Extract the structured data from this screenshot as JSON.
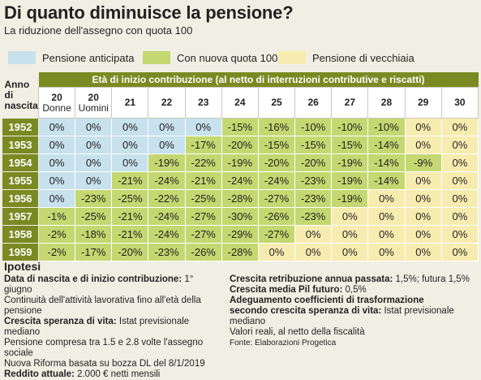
{
  "title": "Di quanto diminuisce la pensione?",
  "subtitle": "La riduzione dell'assegno con quota 100",
  "legend": [
    {
      "label": "Pensione anticipata",
      "color": "#c7e1ed"
    },
    {
      "label": "Con nuova quota 100",
      "color": "#c5d770"
    },
    {
      "label": "Pensione di vecchiaia",
      "color": "#f7ecb0"
    }
  ],
  "table": {
    "group_header": "Età di inizio contribuzione (al netto di interruzioni contributive e riscatti)",
    "row_header": "Anno di nascita",
    "columns": [
      {
        "label": "20",
        "sub": "Donne"
      },
      {
        "label": "20",
        "sub": "Uomini"
      },
      {
        "label": "21",
        "sub": ""
      },
      {
        "label": "22",
        "sub": ""
      },
      {
        "label": "23",
        "sub": ""
      },
      {
        "label": "24",
        "sub": ""
      },
      {
        "label": "25",
        "sub": ""
      },
      {
        "label": "26",
        "sub": ""
      },
      {
        "label": "27",
        "sub": ""
      },
      {
        "label": "28",
        "sub": ""
      },
      {
        "label": "29",
        "sub": ""
      },
      {
        "label": "30",
        "sub": ""
      }
    ],
    "rows": [
      {
        "year": "1952",
        "values": [
          "0%",
          "0%",
          "0%",
          "0%",
          "0%",
          "-15%",
          "-16%",
          "-10%",
          "-10%",
          "-10%",
          "0%",
          "0%"
        ],
        "types": [
          "b",
          "b",
          "b",
          "b",
          "b",
          "g",
          "g",
          "g",
          "g",
          "g",
          "y",
          "y"
        ]
      },
      {
        "year": "1953",
        "values": [
          "0%",
          "0%",
          "0%",
          "0%",
          "-17%",
          "-20%",
          "-15%",
          "-15%",
          "-15%",
          "-14%",
          "0%",
          "0%"
        ],
        "types": [
          "b",
          "b",
          "b",
          "b",
          "g",
          "g",
          "g",
          "g",
          "g",
          "g",
          "y",
          "y"
        ]
      },
      {
        "year": "1954",
        "values": [
          "0%",
          "0%",
          "0%",
          "-19%",
          "-22%",
          "-19%",
          "-20%",
          "-20%",
          "-19%",
          "-14%",
          "-9%",
          "0%"
        ],
        "types": [
          "b",
          "b",
          "b",
          "g",
          "g",
          "g",
          "g",
          "g",
          "g",
          "g",
          "g",
          "y"
        ]
      },
      {
        "year": "1955",
        "values": [
          "0%",
          "0%",
          "-21%",
          "-24%",
          "-21%",
          "-24%",
          "-24%",
          "-23%",
          "-19%",
          "-14%",
          "0%",
          "0%"
        ],
        "types": [
          "b",
          "b",
          "g",
          "g",
          "g",
          "g",
          "g",
          "g",
          "g",
          "g",
          "y",
          "y"
        ]
      },
      {
        "year": "1956",
        "values": [
          "0%",
          "-23%",
          "-25%",
          "-22%",
          "-25%",
          "-28%",
          "-27%",
          "-23%",
          "-19%",
          "0%",
          "0%",
          "0%"
        ],
        "types": [
          "b",
          "g",
          "g",
          "g",
          "g",
          "g",
          "g",
          "g",
          "g",
          "y",
          "y",
          "y"
        ]
      },
      {
        "year": "1957",
        "values": [
          "-1%",
          "-25%",
          "-21%",
          "-24%",
          "-27%",
          "-30%",
          "-26%",
          "-23%",
          "0%",
          "0%",
          "0%",
          "0%"
        ],
        "types": [
          "g",
          "g",
          "g",
          "g",
          "g",
          "g",
          "g",
          "g",
          "y",
          "y",
          "y",
          "y"
        ]
      },
      {
        "year": "1958",
        "values": [
          "-2%",
          "-18%",
          "-21%",
          "-24%",
          "-27%",
          "-29%",
          "-27%",
          "0%",
          "0%",
          "0%",
          "0%",
          "0%"
        ],
        "types": [
          "g",
          "g",
          "g",
          "g",
          "g",
          "g",
          "g",
          "y",
          "y",
          "y",
          "y",
          "y"
        ]
      },
      {
        "year": "1959",
        "values": [
          "-2%",
          "-17%",
          "-20%",
          "-23%",
          "-26%",
          "-28%",
          "0%",
          "0%",
          "0%",
          "0%",
          "0%",
          "0%"
        ],
        "types": [
          "g",
          "g",
          "g",
          "g",
          "g",
          "g",
          "y",
          "y",
          "y",
          "y",
          "y",
          "y"
        ]
      }
    ]
  },
  "notes": {
    "title": "Ipotesi",
    "left": [
      {
        "bold": "Data di nascita e di inizio contribuzione:",
        "text": " 1° giugno"
      },
      {
        "bold": "",
        "text": "Continuità dell'attività lavorativa fino all'età della pensione"
      },
      {
        "bold": "Crescita speranza di vita:",
        "text": " Istat previsionale mediano"
      },
      {
        "bold": "",
        "text": "Pensione compresa tra 1.5 e 2.8 volte l'assegno sociale"
      },
      {
        "bold": "",
        "text": "Nuova Riforma basata su bozza DL del 8/1/2019"
      },
      {
        "bold": "Reddito attuale:",
        "text": " 2.000 € netti mensili"
      }
    ],
    "right": [
      {
        "bold": "Crescita retribuzione annua passata:",
        "text": " 1,5%; futura 1,5%"
      },
      {
        "bold": "Crescita media Pil futuro:",
        "text": " 0,5%"
      },
      {
        "bold": "Adeguamento coefficienti di trasformazione",
        "text": ""
      },
      {
        "bold": "secondo crescita speranza di vita:",
        "text": " Istat previsionale mediano"
      },
      {
        "bold": "",
        "text": "Valori reali, al netto della fiscalità"
      }
    ],
    "source": "Fonte: Elaborazioni Progetica"
  }
}
